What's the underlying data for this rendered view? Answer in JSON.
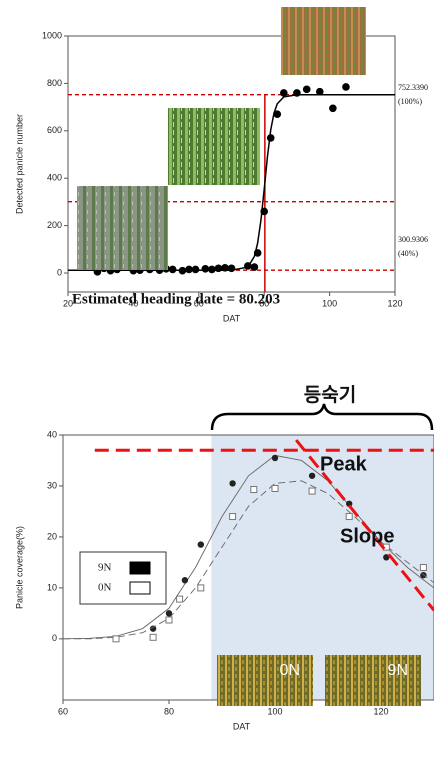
{
  "chart_data": [
    {
      "type": "scatter",
      "y_label": "Detected panicle number",
      "x_label": "DAT",
      "xlim": [
        20,
        120
      ],
      "xticks": [
        20,
        40,
        60,
        80,
        100,
        120
      ],
      "ylim": [
        -80,
        1000
      ],
      "yticks": [
        0,
        200,
        400,
        600,
        800,
        1000
      ],
      "series": [
        {
          "color": "#000000",
          "x": [
            29,
            31,
            33,
            35,
            40,
            42,
            45,
            48,
            50,
            52,
            55,
            57,
            59,
            62,
            64,
            66,
            68,
            70,
            75,
            77,
            78,
            80,
            82,
            84,
            86,
            90,
            93,
            97,
            101,
            105
          ],
          "values": [
            5,
            20,
            10,
            15,
            10,
            12,
            15,
            12,
            18,
            15,
            10,
            15,
            15,
            18,
            15,
            20,
            22,
            20,
            30,
            25,
            85,
            260,
            570,
            670,
            760,
            760,
            775,
            765,
            695,
            785
          ],
          "fit": {
            "x": [
              20,
              40,
              60,
              70,
              75,
              77,
              78,
              79,
              80,
              81,
              82,
              83,
              84,
              86,
              90,
              100,
              120
            ],
            "values": [
              12,
              12,
              12,
              12,
              25,
              70,
              127,
              223,
              353,
              492,
              604,
              675,
              714,
              743,
              752,
              752,
              752
            ]
          }
        }
      ],
      "hlines": [
        752.339,
        300.9306,
        12
      ],
      "hline_color": "#cc0000",
      "vline": 80.203,
      "annotations": [
        "752.3390",
        "(100%)",
        "300.9306",
        "(40%)",
        "Estimated heading date = 80.203"
      ]
    },
    {
      "type": "scatter",
      "y_label": "Panicle coverage(%)",
      "x_label": "DAT",
      "xlim": [
        60,
        130
      ],
      "xticks": [
        60,
        80,
        100,
        120
      ],
      "ylim": [
        -12,
        40
      ],
      "yticks": [
        0,
        10,
        20,
        30,
        40
      ],
      "span": [
        88,
        130
      ],
      "span_color": "#dbe6f2",
      "series": [
        {
          "name": "9N",
          "color": "#222222",
          "marker": "circle",
          "x": [
            77,
            80,
            83,
            86,
            92,
            100,
            107,
            114,
            121,
            128
          ],
          "values": [
            2,
            5,
            11.5,
            18.5,
            30.5,
            35.5,
            32,
            26.5,
            16,
            12.5
          ],
          "fit": {
            "x": [
              60,
              65,
              70,
              75,
              80,
              85,
              90,
              95,
              100,
              105,
              110,
              115,
              120,
              125,
              130
            ],
            "values": [
              0,
              0.1,
              0.5,
              2,
              6,
              14,
              24,
              32,
              36,
              35,
              31,
              25,
              19,
              14,
              10
            ]
          }
        },
        {
          "name": "0N",
          "color": "#777777",
          "marker": "square",
          "x": [
            70,
            77,
            80,
            82,
            86,
            92,
            96,
            100,
            107,
            114,
            121,
            128
          ],
          "values": [
            0,
            0.3,
            3.7,
            7.8,
            10,
            24,
            29.3,
            29.5,
            29,
            24,
            18,
            14
          ],
          "fit": {
            "x": [
              60,
              65,
              70,
              75,
              80,
              85,
              90,
              95,
              100,
              105,
              110,
              115,
              120,
              125,
              130
            ],
            "values": [
              0,
              0,
              0.3,
              1.2,
              4,
              10,
              18,
              26,
              30.5,
              31,
              28.5,
              24,
              19,
              15,
              11
            ]
          }
        }
      ],
      "peak_line": 37,
      "slope_line": {
        "x": [
          104,
          130
        ],
        "values": [
          39,
          5.6
        ]
      },
      "ref_color": "#ee1111",
      "annotations": [
        "등숙기",
        "Peak",
        "Slope",
        "0N",
        "9N"
      ]
    }
  ]
}
